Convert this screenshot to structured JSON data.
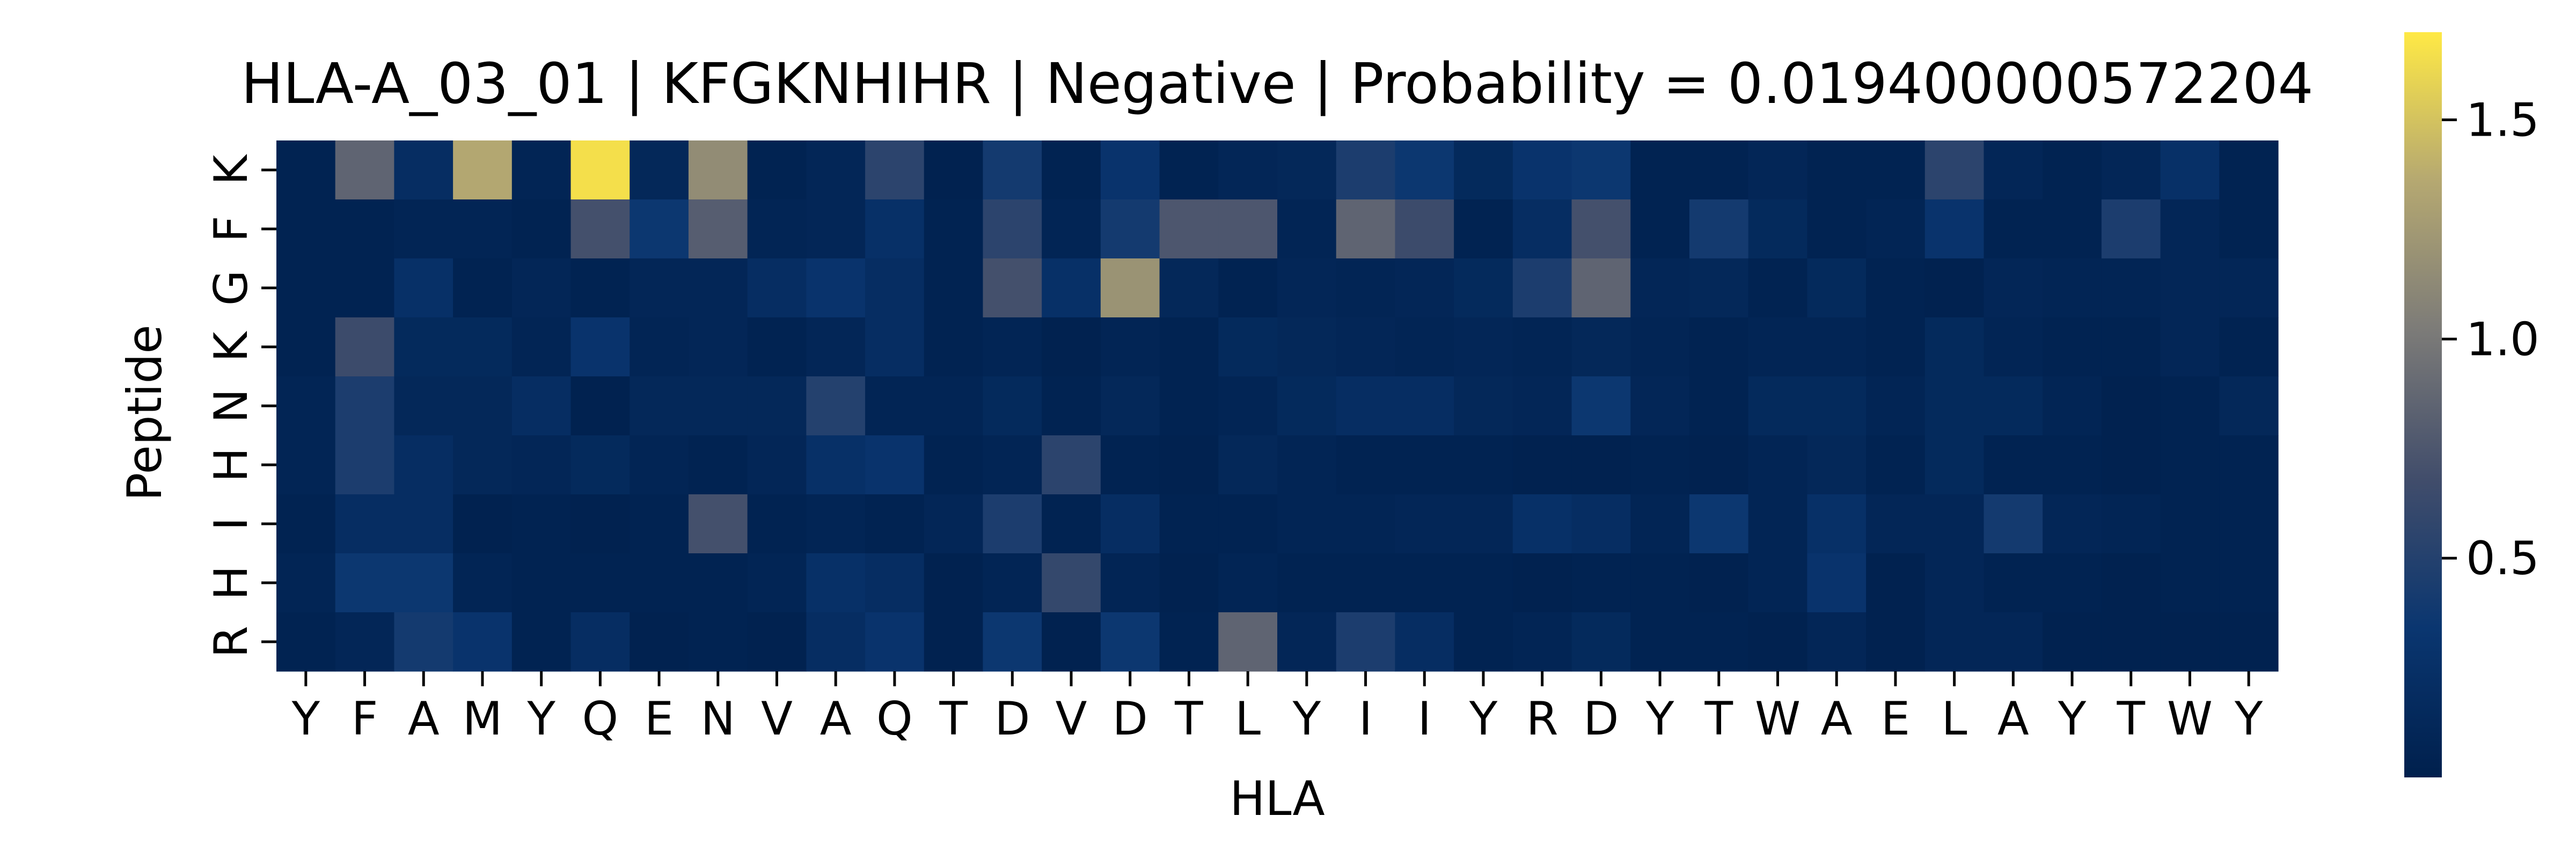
{
  "chart_data": {
    "type": "heatmap",
    "title": "HLA-A_03_01 | KFGKNHIHR | Negative | Probability = 0.019400000572204",
    "xlabel": "HLA",
    "ylabel": "Peptide",
    "x_categories": [
      "Y",
      "F",
      "A",
      "M",
      "Y",
      "Q",
      "E",
      "N",
      "V",
      "A",
      "Q",
      "T",
      "D",
      "V",
      "D",
      "T",
      "L",
      "Y",
      "I",
      "I",
      "Y",
      "R",
      "D",
      "Y",
      "T",
      "W",
      "A",
      "E",
      "L",
      "A",
      "Y",
      "T",
      "W",
      "Y"
    ],
    "y_categories": [
      "K",
      "F",
      "G",
      "K",
      "N",
      "H",
      "I",
      "H",
      "R"
    ],
    "values": [
      [
        0.05,
        0.85,
        0.2,
        1.35,
        0.08,
        1.65,
        0.12,
        1.15,
        0.05,
        0.1,
        0.55,
        0.03,
        0.4,
        0.05,
        0.3,
        0.05,
        0.1,
        0.12,
        0.45,
        0.35,
        0.15,
        0.3,
        0.35,
        0.05,
        0.05,
        0.1,
        0.05,
        0.05,
        0.55,
        0.1,
        0.05,
        0.1,
        0.25,
        0.05
      ],
      [
        0.05,
        0.05,
        0.08,
        0.08,
        0.05,
        0.7,
        0.35,
        0.8,
        0.08,
        0.1,
        0.25,
        0.05,
        0.55,
        0.08,
        0.4,
        0.75,
        0.75,
        0.08,
        0.85,
        0.65,
        0.05,
        0.2,
        0.7,
        0.05,
        0.4,
        0.15,
        0.05,
        0.08,
        0.3,
        0.05,
        0.05,
        0.45,
        0.1,
        0.05
      ],
      [
        0.05,
        0.05,
        0.25,
        0.05,
        0.1,
        0.05,
        0.1,
        0.1,
        0.2,
        0.3,
        0.2,
        0.05,
        0.7,
        0.25,
        1.2,
        0.12,
        0.05,
        0.1,
        0.08,
        0.1,
        0.15,
        0.45,
        0.85,
        0.1,
        0.12,
        0.05,
        0.15,
        0.05,
        0.03,
        0.1,
        0.08,
        0.08,
        0.1,
        0.1
      ],
      [
        0.05,
        0.65,
        0.15,
        0.15,
        0.08,
        0.3,
        0.08,
        0.1,
        0.05,
        0.1,
        0.2,
        0.05,
        0.08,
        0.03,
        0.08,
        0.05,
        0.15,
        0.12,
        0.1,
        0.08,
        0.1,
        0.08,
        0.12,
        0.08,
        0.05,
        0.08,
        0.08,
        0.05,
        0.15,
        0.08,
        0.05,
        0.05,
        0.1,
        0.05
      ],
      [
        0.08,
        0.45,
        0.12,
        0.12,
        0.2,
        0.03,
        0.12,
        0.12,
        0.12,
        0.5,
        0.08,
        0.08,
        0.15,
        0.05,
        0.12,
        0.05,
        0.08,
        0.15,
        0.2,
        0.2,
        0.12,
        0.1,
        0.35,
        0.1,
        0.05,
        0.15,
        0.15,
        0.08,
        0.15,
        0.15,
        0.08,
        0.03,
        0.05,
        0.12
      ],
      [
        0.08,
        0.45,
        0.2,
        0.12,
        0.1,
        0.15,
        0.08,
        0.05,
        0.1,
        0.25,
        0.3,
        0.05,
        0.08,
        0.55,
        0.05,
        0.03,
        0.12,
        0.08,
        0.05,
        0.05,
        0.05,
        0.03,
        0.03,
        0.05,
        0.03,
        0.08,
        0.12,
        0.05,
        0.15,
        0.05,
        0.05,
        0.03,
        0.05,
        0.05
      ],
      [
        0.05,
        0.2,
        0.2,
        0.03,
        0.05,
        0.03,
        0.05,
        0.7,
        0.05,
        0.08,
        0.05,
        0.1,
        0.45,
        0.05,
        0.2,
        0.05,
        0.05,
        0.08,
        0.08,
        0.1,
        0.1,
        0.25,
        0.2,
        0.08,
        0.35,
        0.08,
        0.25,
        0.1,
        0.1,
        0.4,
        0.1,
        0.08,
        0.05,
        0.05
      ],
      [
        0.08,
        0.35,
        0.35,
        0.08,
        0.05,
        0.05,
        0.05,
        0.05,
        0.08,
        0.25,
        0.2,
        0.03,
        0.08,
        0.6,
        0.08,
        0.03,
        0.08,
        0.05,
        0.05,
        0.05,
        0.05,
        0.03,
        0.05,
        0.05,
        0.03,
        0.08,
        0.3,
        0.03,
        0.1,
        0.05,
        0.05,
        0.03,
        0.05,
        0.05
      ],
      [
        0.05,
        0.1,
        0.4,
        0.3,
        0.05,
        0.2,
        0.03,
        0.05,
        0.03,
        0.2,
        0.3,
        0.03,
        0.35,
        0.03,
        0.35,
        0.05,
        0.85,
        0.1,
        0.45,
        0.2,
        0.05,
        0.08,
        0.15,
        0.05,
        0.05,
        0.03,
        0.1,
        0.03,
        0.1,
        0.1,
        0.03,
        0.03,
        0.03,
        0.03
      ]
    ],
    "vmin": 0.0,
    "vmax": 1.7,
    "colorbar_ticks": [
      0.5,
      1.0,
      1.5
    ],
    "colormap": [
      "#00204d",
      "#0a3670",
      "#414d6b",
      "#7c7b78",
      "#b5a871",
      "#ffe945"
    ]
  }
}
